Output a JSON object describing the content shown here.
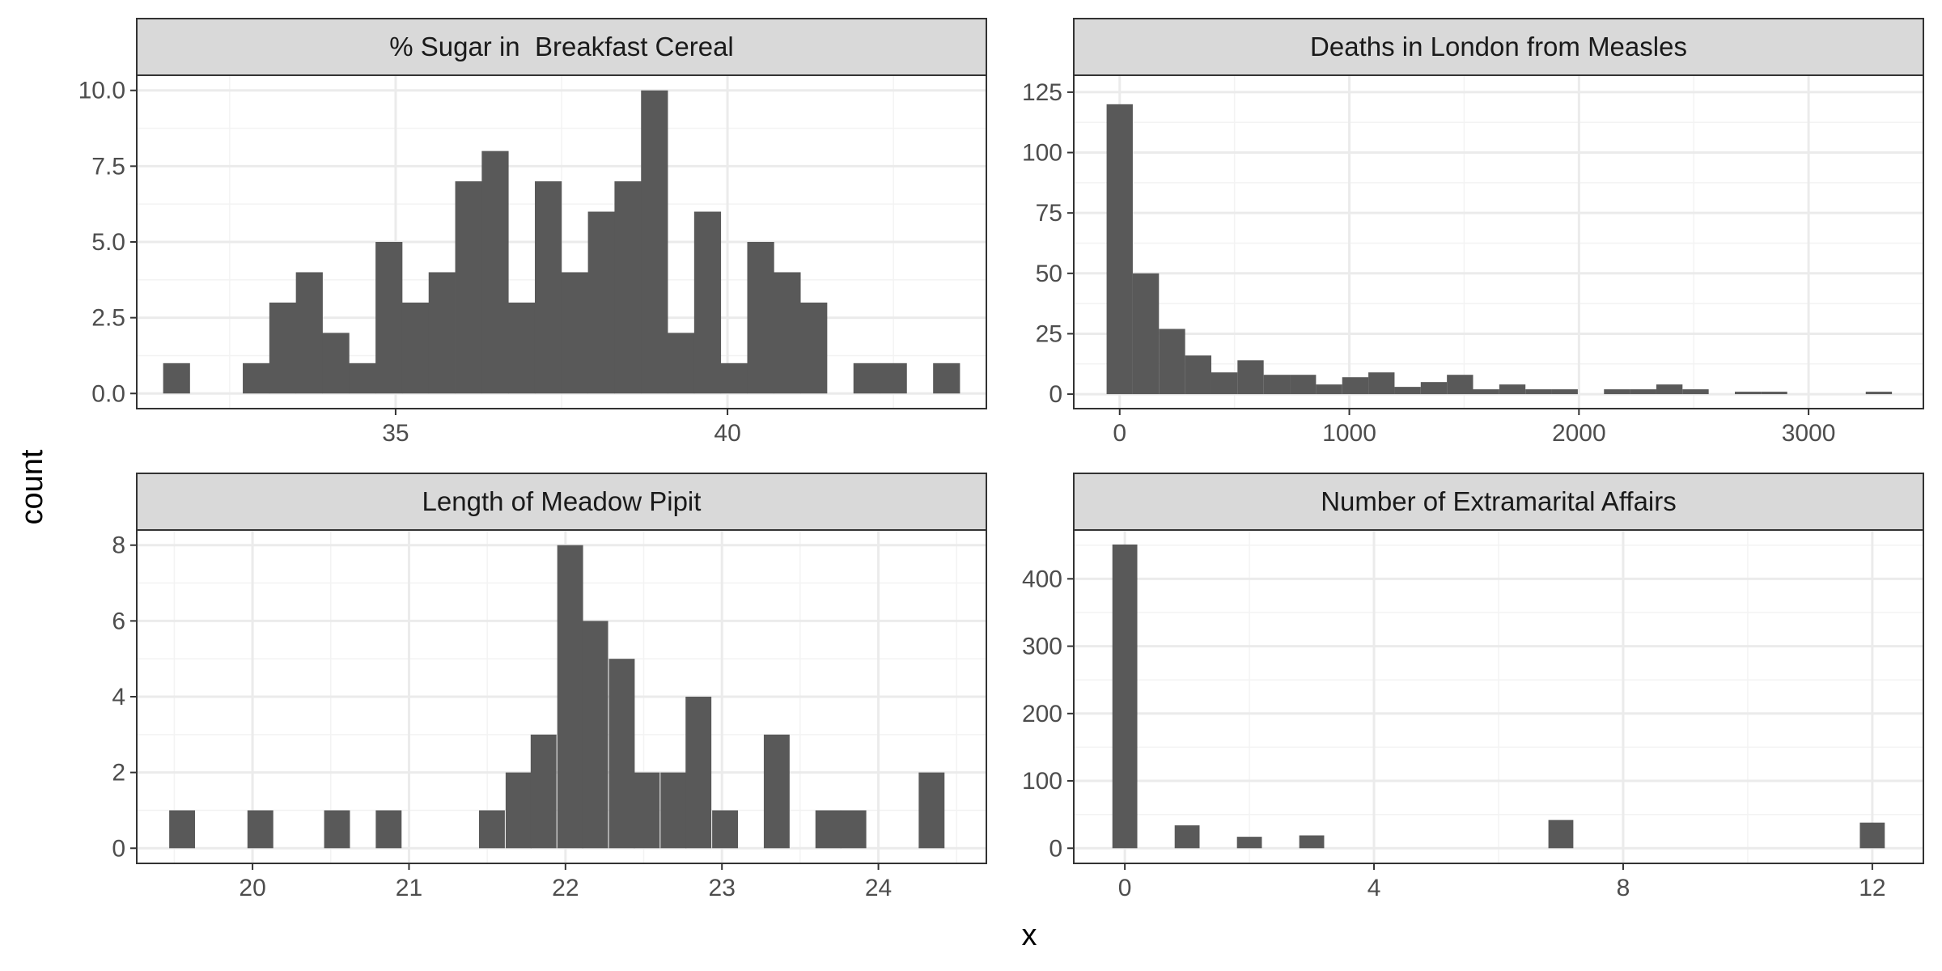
{
  "xlabel": "x",
  "ylabel": "count",
  "colors": {
    "bar": "#595959",
    "strip": "#d9d9d9",
    "border": "#333333",
    "grid_major": "#ebebeb",
    "grid_minor": "#f3f3f3"
  },
  "chart_data": [
    {
      "type": "bar",
      "title": "% Sugar in  Breakfast Cereal",
      "xlim": [
        31.1,
        43.9
      ],
      "ylim": [
        -0.5,
        10.5
      ],
      "xticks": [
        35,
        40
      ],
      "yticks": [
        0,
        2.5,
        5,
        7.5,
        10
      ],
      "ytick_labels": [
        "0.0",
        "2.5",
        "5.0",
        "7.5",
        "10.0"
      ],
      "grid_x_minor": [
        32.5,
        37.5,
        42.5
      ],
      "grid_y_minor": [
        1.25,
        3.75,
        6.25,
        8.75
      ],
      "binwidth": 0.405,
      "x": [
        31.7,
        32.1,
        32.5,
        32.9,
        33.3,
        33.7,
        34.1,
        34.5,
        34.9,
        35.3,
        35.7,
        36.1,
        36.5,
        36.9,
        37.3,
        37.7,
        38.1,
        38.5,
        38.9,
        39.3,
        39.7,
        40.1,
        40.5,
        40.9,
        41.3,
        41.7,
        42.1,
        42.5,
        42.9,
        43.3
      ],
      "values": [
        1,
        0,
        0,
        1,
        3,
        4,
        2,
        1,
        5,
        3,
        4,
        7,
        8,
        3,
        7,
        4,
        6,
        7,
        10,
        2,
        6,
        1,
        5,
        4,
        3,
        0,
        1,
        1,
        0,
        1
      ]
    },
    {
      "type": "bar",
      "title": "Deaths in London from Measles",
      "xlim": [
        -200,
        3500
      ],
      "ylim": [
        -6,
        132
      ],
      "xticks": [
        0,
        1000,
        2000,
        3000
      ],
      "yticks": [
        0,
        25,
        50,
        75,
        100,
        125
      ],
      "ytick_labels": [
        "0",
        "25",
        "50",
        "75",
        "100",
        "125"
      ],
      "grid_x_minor": [
        500,
        1500,
        2500
      ],
      "grid_y_minor": [
        12.5,
        37.5,
        62.5,
        87.5,
        112.5
      ],
      "binwidth": 114,
      "x": [
        0,
        114,
        228,
        342,
        456,
        570,
        684,
        798,
        912,
        1026,
        1140,
        1254,
        1368,
        1482,
        1596,
        1710,
        1824,
        1938,
        2052,
        2166,
        2280,
        2394,
        2508,
        2622,
        2736,
        2850,
        2964,
        3078,
        3192,
        3306
      ],
      "values": [
        120,
        50,
        27,
        16,
        9,
        14,
        8,
        8,
        4,
        7,
        9,
        3,
        5,
        8,
        2,
        4,
        2,
        2,
        0,
        2,
        2,
        4,
        2,
        0,
        1,
        1,
        0,
        0,
        0,
        1
      ]
    },
    {
      "type": "bar",
      "title": "Length of Meadow Pipit",
      "xlim": [
        19.26,
        24.69
      ],
      "ylim": [
        -0.4,
        8.4
      ],
      "xticks": [
        20,
        21,
        22,
        23,
        24
      ],
      "yticks": [
        0,
        2,
        4,
        6,
        8
      ],
      "ytick_labels": [
        "0",
        "2",
        "4",
        "6",
        "8"
      ],
      "grid_x_minor": [
        19.5,
        20.5,
        21.5,
        22.5,
        23.5,
        24.5
      ],
      "grid_y_minor": [
        1,
        3,
        5,
        7
      ],
      "binwidth": 0.165,
      "x": [
        19.55,
        19.72,
        19.88,
        20.05,
        20.21,
        20.38,
        20.54,
        20.71,
        20.87,
        21.04,
        21.2,
        21.37,
        21.53,
        21.7,
        21.86,
        22.03,
        22.19,
        22.36,
        22.52,
        22.69,
        22.85,
        23.02,
        23.18,
        23.35,
        23.51,
        23.68,
        23.84,
        24.01,
        24.17,
        24.34
      ],
      "values": [
        1,
        0,
        0,
        1,
        0,
        0,
        1,
        0,
        1,
        0,
        0,
        0,
        1,
        2,
        3,
        8,
        6,
        5,
        2,
        2,
        4,
        1,
        0,
        3,
        0,
        1,
        1,
        0,
        0,
        2
      ]
    },
    {
      "type": "bar",
      "title": "Number of Extramarital Affairs",
      "xlim": [
        -0.82,
        12.82
      ],
      "ylim": [
        -22.5,
        472.5
      ],
      "xticks": [
        0,
        4,
        8,
        12
      ],
      "yticks": [
        0,
        100,
        200,
        300,
        400
      ],
      "ytick_labels": [
        "0",
        "100",
        "200",
        "300",
        "400"
      ],
      "grid_x_minor": [
        2,
        6,
        10
      ],
      "grid_y_minor": [
        50,
        150,
        250,
        350,
        450
      ],
      "binwidth": 0.4,
      "x": [
        0,
        1,
        2,
        3,
        7,
        12
      ],
      "values": [
        451,
        34,
        17,
        19,
        42,
        38
      ]
    }
  ]
}
